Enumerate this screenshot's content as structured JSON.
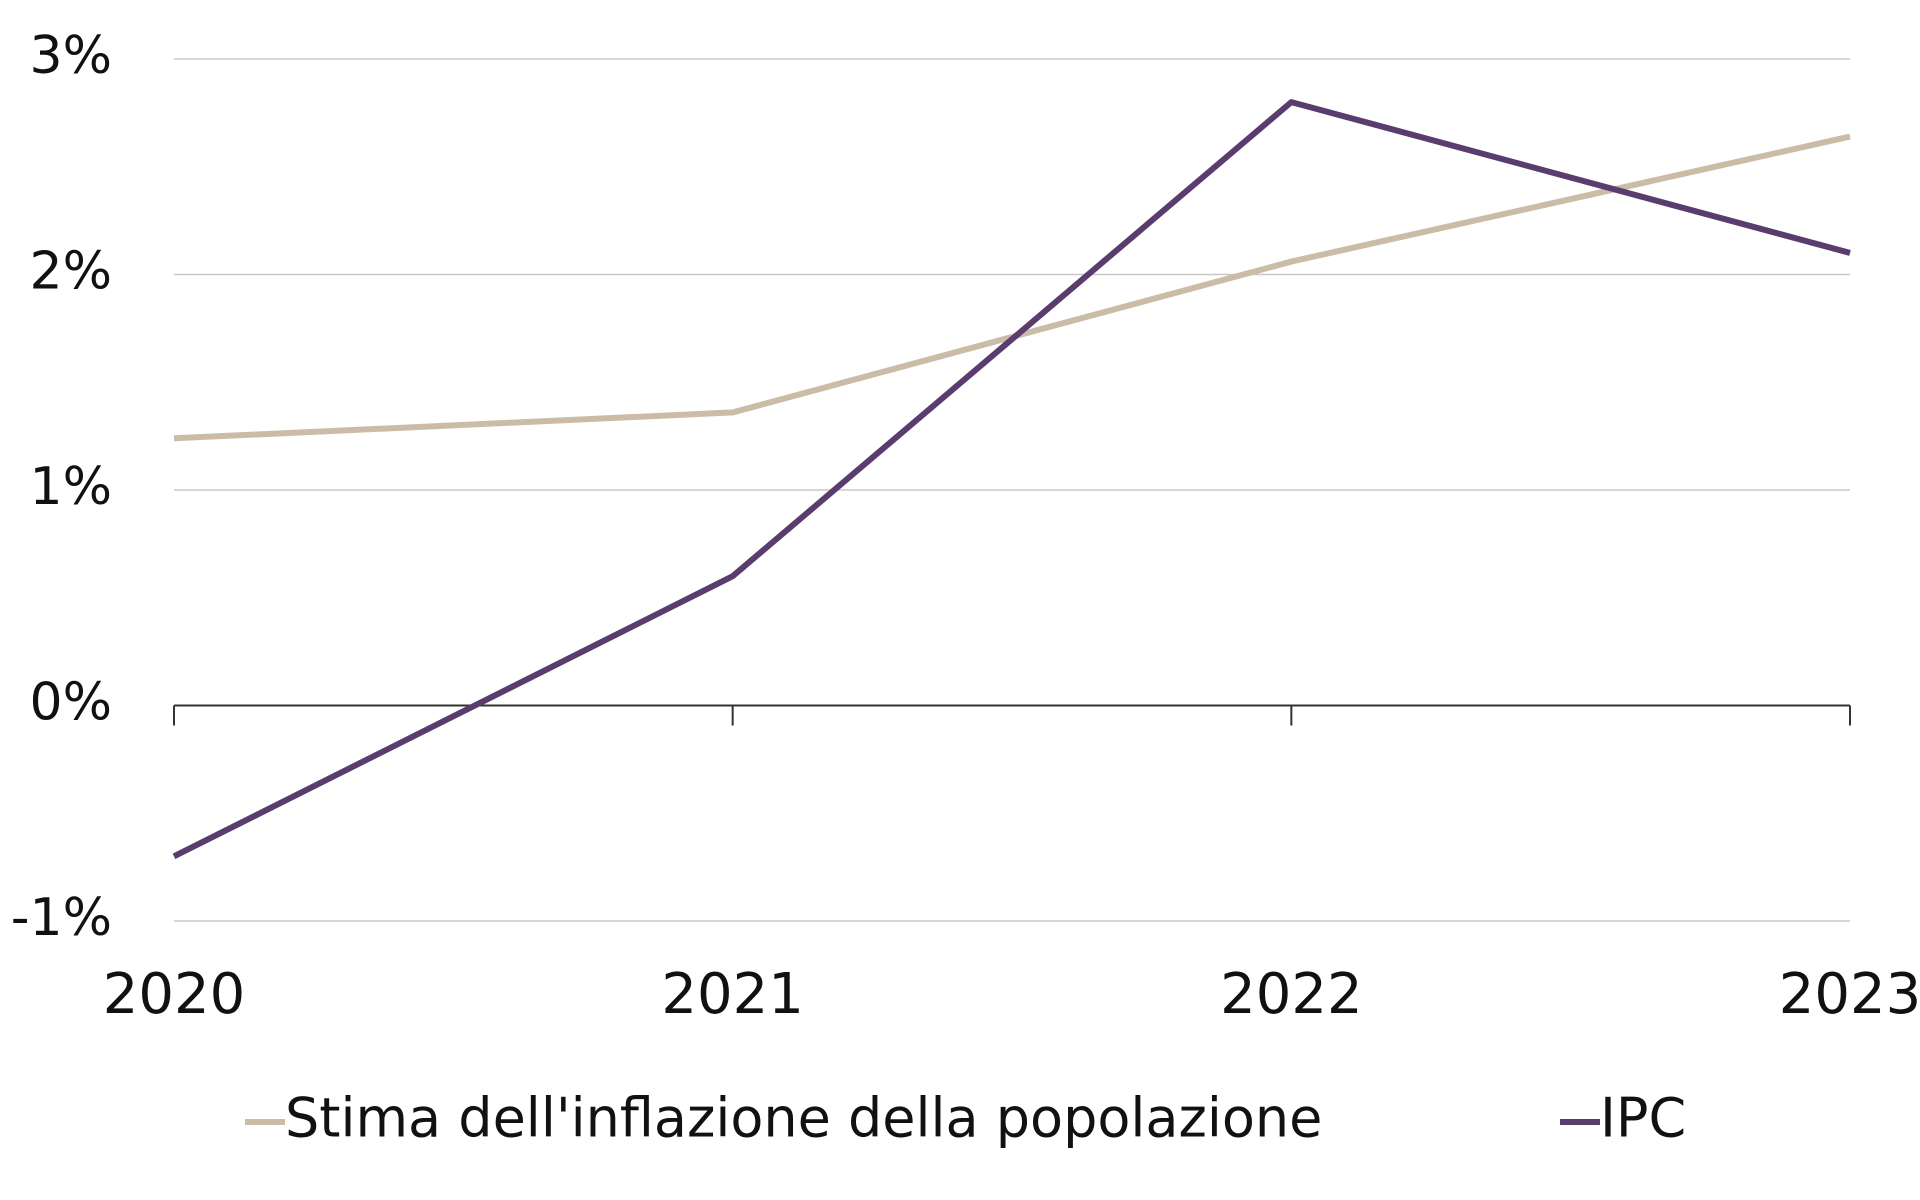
{
  "chart_data": {
    "type": "line",
    "categories": [
      "2020",
      "2021",
      "2022",
      "2023"
    ],
    "series": [
      {
        "name": "Stima dell'inflazione della popolazione",
        "color": "#cbbca8",
        "values": [
          1.24,
          1.36,
          2.06,
          2.64
        ]
      },
      {
        "name": "IPC",
        "color": "#5a3d6e",
        "values": [
          -0.7,
          0.6,
          2.8,
          2.1
        ]
      }
    ],
    "ylim": [
      -1,
      3
    ],
    "yticks": [
      {
        "value": -1,
        "label": "-1%"
      },
      {
        "value": 0,
        "label": "0%"
      },
      {
        "value": 1,
        "label": "1%"
      },
      {
        "value": 2,
        "label": "2%"
      },
      {
        "value": 3,
        "label": "3%"
      }
    ],
    "grid": true,
    "legend": "bottom"
  }
}
